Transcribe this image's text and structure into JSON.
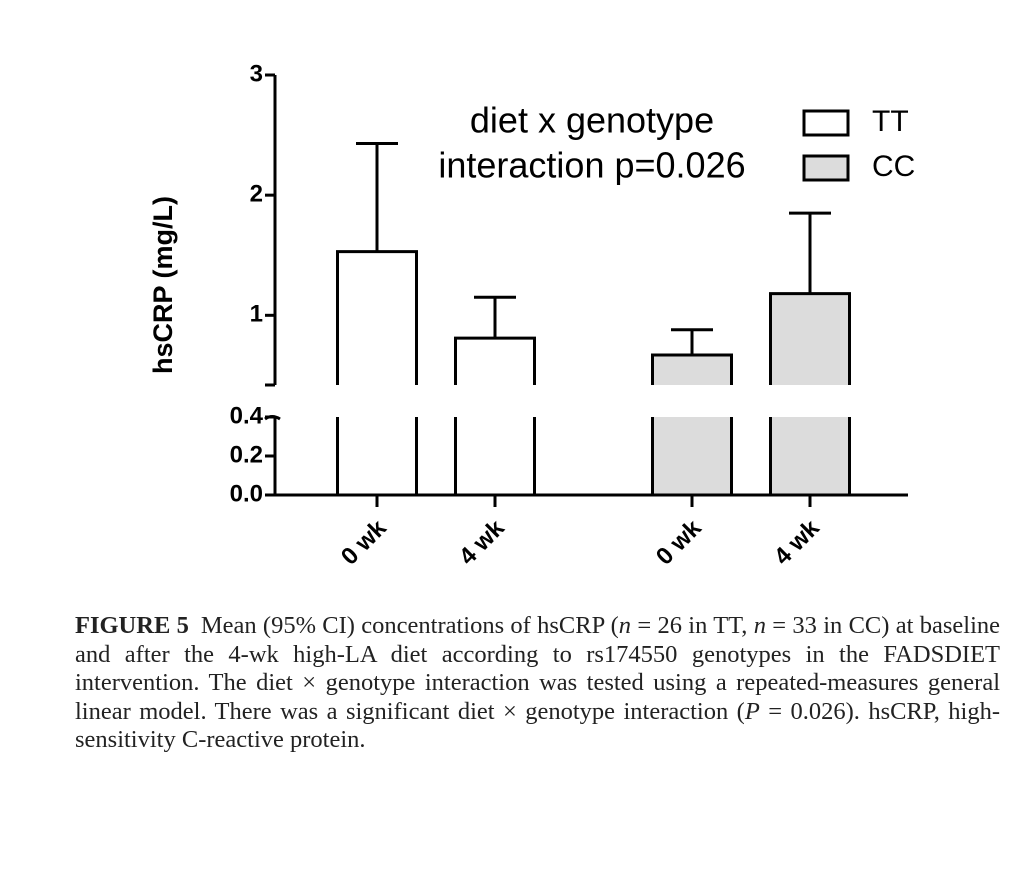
{
  "chart_data": {
    "type": "bar",
    "ylabel": "hsCRP (mg/L)",
    "annotation": [
      "diet x genotype",
      "interaction p=0.026"
    ],
    "categories": [
      "0 wk",
      "4 wk",
      "0 wk",
      "4 wk"
    ],
    "series": [
      {
        "name": "TT",
        "color": "#ffffff",
        "values": [
          1.53,
          0.81,
          null,
          null
        ],
        "errors": [
          0.9,
          0.34,
          null,
          null
        ]
      },
      {
        "name": "CC",
        "color": "#dcdcdc",
        "values": [
          null,
          null,
          0.67,
          1.18
        ],
        "errors": [
          null,
          null,
          0.21,
          0.67
        ]
      }
    ],
    "ylim": [
      0,
      3
    ],
    "y_break": [
      0.4,
      0.42
    ],
    "yticks": [
      {
        "value": 0,
        "label": "0.0"
      },
      0.2,
      0.4,
      1,
      2,
      3
    ]
  },
  "caption": {
    "label": "FIGURE 5",
    "runs": [
      "Mean (95% CI) concentrations of hsCRP (",
      "n",
      " = 26 in TT, ",
      "n",
      " = 33 in CC) at baseline and after the 4-wk high-LA diet according to rs174550 genotypes in the FADSDIET intervention. The diet × genotype interaction was tested using a repeated-measures general linear model. There was a significant diet × genotype interaction (",
      "P",
      " = 0.026). hsCRP, high-sensitivity C-reactive protein."
    ]
  }
}
